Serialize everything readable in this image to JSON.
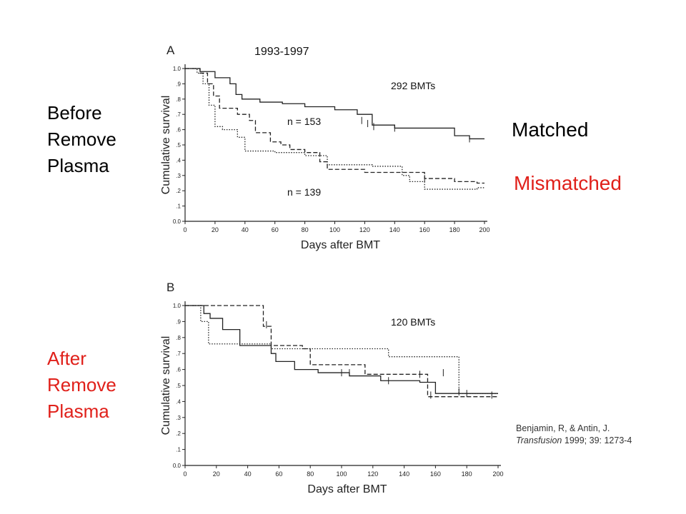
{
  "side_labels": {
    "top": "Before\nRemove\nPlasma",
    "bottom": "After\nRemove\nPlasma",
    "top_color": "#000000",
    "bottom_color": "#e0201a"
  },
  "legend": {
    "matched": "Matched",
    "mismatched": "Mismatched",
    "matched_color": "#000000",
    "mismatched_color": "#e0201a"
  },
  "citation": {
    "line1": "Benjamin, R, & Antin, J.",
    "journal": "Transfusion",
    "rest": " 1999; 39: 1273-4"
  },
  "chart_data": [
    {
      "type": "line",
      "panel_label": "A",
      "title": "1993-1997",
      "annotation": "292 BMTs",
      "n_labels": [
        "n = 153",
        "n = 139"
      ],
      "xlabel": "Days after BMT",
      "ylabel": "Cumulative survival",
      "xlim": [
        0,
        200
      ],
      "ylim": [
        0,
        1.0
      ],
      "xticks": [
        0,
        20,
        40,
        60,
        80,
        100,
        120,
        140,
        160,
        180,
        200
      ],
      "yticks": [
        "0.0",
        ".1",
        ".2",
        ".3",
        ".4",
        ".5",
        ".6",
        ".7",
        ".8",
        ".9",
        "1.0"
      ],
      "series": [
        {
          "style": "solid",
          "steps": [
            [
              0,
              1.0
            ],
            [
              10,
              0.98
            ],
            [
              20,
              0.94
            ],
            [
              30,
              0.9
            ],
            [
              34,
              0.83
            ],
            [
              38,
              0.8
            ],
            [
              50,
              0.78
            ],
            [
              65,
              0.77
            ],
            [
              80,
              0.75
            ],
            [
              100,
              0.73
            ],
            [
              115,
              0.7
            ],
            [
              125,
              0.63
            ],
            [
              140,
              0.61
            ],
            [
              180,
              0.56
            ],
            [
              190,
              0.54
            ],
            [
              200,
              0.54
            ]
          ],
          "censor": [
            [
              118,
              0.66
            ],
            [
              122,
              0.64
            ],
            [
              126,
              0.62
            ],
            [
              140,
              0.61
            ],
            [
              190,
              0.54
            ]
          ]
        },
        {
          "style": "dashed",
          "steps": [
            [
              0,
              1.0
            ],
            [
              10,
              0.97
            ],
            [
              15,
              0.9
            ],
            [
              19,
              0.82
            ],
            [
              23,
              0.74
            ],
            [
              35,
              0.7
            ],
            [
              43,
              0.66
            ],
            [
              47,
              0.58
            ],
            [
              57,
              0.52
            ],
            [
              64,
              0.5
            ],
            [
              70,
              0.47
            ],
            [
              80,
              0.45
            ],
            [
              90,
              0.39
            ],
            [
              95,
              0.34
            ],
            [
              120,
              0.32
            ],
            [
              160,
              0.28
            ],
            [
              180,
              0.26
            ],
            [
              195,
              0.25
            ],
            [
              200,
              0.25
            ]
          ],
          "censor": [
            [
              160,
              0.28
            ]
          ]
        },
        {
          "style": "dotted",
          "steps": [
            [
              0,
              1.0
            ],
            [
              8,
              0.97
            ],
            [
              12,
              0.9
            ],
            [
              16,
              0.76
            ],
            [
              20,
              0.62
            ],
            [
              25,
              0.6
            ],
            [
              35,
              0.55
            ],
            [
              40,
              0.46
            ],
            [
              60,
              0.45
            ],
            [
              80,
              0.43
            ],
            [
              95,
              0.37
            ],
            [
              125,
              0.36
            ],
            [
              145,
              0.3
            ],
            [
              150,
              0.26
            ],
            [
              160,
              0.21
            ],
            [
              190,
              0.21
            ],
            [
              195,
              0.22
            ],
            [
              200,
              0.22
            ]
          ],
          "censor": []
        }
      ]
    },
    {
      "type": "line",
      "panel_label": "B",
      "title": "",
      "annotation": "120 BMTs",
      "xlabel": "Days after BMT",
      "ylabel": "Cumulative survival",
      "xlim": [
        0,
        200
      ],
      "ylim": [
        0,
        1.0
      ],
      "xticks": [
        0,
        20,
        40,
        60,
        80,
        100,
        120,
        140,
        160,
        180,
        200
      ],
      "yticks": [
        "0.0",
        ".1",
        ".2",
        ".3",
        ".4",
        ".5",
        ".6",
        ".7",
        ".8",
        ".9",
        "1.0"
      ],
      "series": [
        {
          "style": "solid",
          "steps": [
            [
              0,
              1.0
            ],
            [
              12,
              0.95
            ],
            [
              16,
              0.92
            ],
            [
              24,
              0.85
            ],
            [
              35,
              0.75
            ],
            [
              55,
              0.7
            ],
            [
              58,
              0.65
            ],
            [
              70,
              0.6
            ],
            [
              85,
              0.58
            ],
            [
              105,
              0.56
            ],
            [
              125,
              0.53
            ],
            [
              150,
              0.52
            ],
            [
              160,
              0.45
            ],
            [
              200,
              0.45
            ]
          ],
          "censor": [
            [
              100,
              0.58
            ],
            [
              105,
              0.58
            ],
            [
              130,
              0.53
            ],
            [
              150,
              0.57
            ],
            [
              165,
              0.58
            ],
            [
              180,
              0.45
            ],
            [
              196,
              0.44
            ]
          ]
        },
        {
          "style": "dashed",
          "steps": [
            [
              0,
              1.0
            ],
            [
              20,
              1.0
            ],
            [
              50,
              0.87
            ],
            [
              55,
              0.75
            ],
            [
              75,
              0.73
            ],
            [
              80,
              0.63
            ],
            [
              115,
              0.57
            ],
            [
              155,
              0.43
            ],
            [
              200,
              0.43
            ]
          ],
          "censor": [
            [
              52,
              0.88
            ],
            [
              157,
              0.44
            ]
          ]
        },
        {
          "style": "dotted",
          "steps": [
            [
              0,
              1.0
            ],
            [
              10,
              0.9
            ],
            [
              15,
              0.76
            ],
            [
              55,
              0.73
            ],
            [
              130,
              0.68
            ],
            [
              175,
              0.45
            ],
            [
              200,
              0.45
            ]
          ],
          "censor": [
            [
              175,
              0.46
            ]
          ]
        }
      ]
    }
  ]
}
